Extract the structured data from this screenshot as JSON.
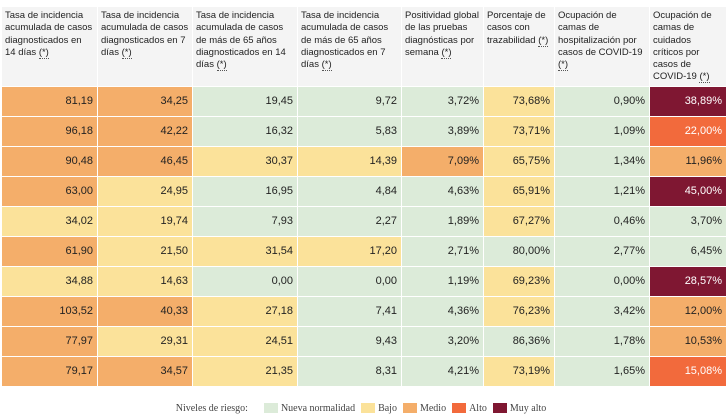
{
  "colors": {
    "normal": "#dcebd9",
    "bajo": "#fbe29a",
    "medio": "#f4ae6a",
    "alto": "#f26a3c",
    "muy_alto": "#7f1732"
  },
  "table": {
    "headers": [
      {
        "text": "Tasa de incidencia acumulada de casos diagnosticados en 14 días",
        "note": "(*)"
      },
      {
        "text": "Tasa de incidencia acumulada de casos diagnosticados en 7 días",
        "note": "(*)"
      },
      {
        "text": "Tasa de incidencia acumulada de casos de más de 65 años diagnosticados en 14 días",
        "note": "(*)"
      },
      {
        "text": "Tasa de incidencia acumulada de casos de más de 65 años diagnosticados en 7 días",
        "note": "(*)"
      },
      {
        "text": "Positividad global de las pruebas diagnósticas por semana",
        "note": "(*)"
      },
      {
        "text": "Porcentaje de casos con trazabilidad",
        "note": "(*)"
      },
      {
        "text": "Ocupación de camas de hospitalización por casos de COVID-19",
        "note": "(*)"
      },
      {
        "text": "Ocupación de camas de cuidados críticos por casos de COVID-19",
        "note": "(*)"
      }
    ],
    "rows": [
      [
        {
          "v": "81,19",
          "l": "medio"
        },
        {
          "v": "34,25",
          "l": "medio"
        },
        {
          "v": "19,45",
          "l": "normal"
        },
        {
          "v": "9,72",
          "l": "normal"
        },
        {
          "v": "3,72%",
          "l": "normal"
        },
        {
          "v": "73,68%",
          "l": "bajo"
        },
        {
          "v": "0,90%",
          "l": "normal"
        },
        {
          "v": "38,89%",
          "l": "muy_alto"
        }
      ],
      [
        {
          "v": "96,18",
          "l": "medio"
        },
        {
          "v": "42,22",
          "l": "medio"
        },
        {
          "v": "16,32",
          "l": "normal"
        },
        {
          "v": "5,83",
          "l": "normal"
        },
        {
          "v": "3,89%",
          "l": "normal"
        },
        {
          "v": "73,71%",
          "l": "bajo"
        },
        {
          "v": "1,09%",
          "l": "normal"
        },
        {
          "v": "22,00%",
          "l": "alto"
        }
      ],
      [
        {
          "v": "90,48",
          "l": "medio"
        },
        {
          "v": "46,45",
          "l": "medio"
        },
        {
          "v": "30,37",
          "l": "bajo"
        },
        {
          "v": "14,39",
          "l": "bajo"
        },
        {
          "v": "7,09%",
          "l": "medio"
        },
        {
          "v": "65,75%",
          "l": "bajo"
        },
        {
          "v": "1,34%",
          "l": "normal"
        },
        {
          "v": "11,96%",
          "l": "medio"
        }
      ],
      [
        {
          "v": "63,00",
          "l": "medio"
        },
        {
          "v": "24,95",
          "l": "bajo"
        },
        {
          "v": "16,95",
          "l": "normal"
        },
        {
          "v": "4,84",
          "l": "normal"
        },
        {
          "v": "4,63%",
          "l": "normal"
        },
        {
          "v": "65,91%",
          "l": "bajo"
        },
        {
          "v": "1,21%",
          "l": "normal"
        },
        {
          "v": "45,00%",
          "l": "muy_alto"
        }
      ],
      [
        {
          "v": "34,02",
          "l": "bajo"
        },
        {
          "v": "19,74",
          "l": "bajo"
        },
        {
          "v": "7,93",
          "l": "normal"
        },
        {
          "v": "2,27",
          "l": "normal"
        },
        {
          "v": "1,89%",
          "l": "normal"
        },
        {
          "v": "67,27%",
          "l": "bajo"
        },
        {
          "v": "0,46%",
          "l": "normal"
        },
        {
          "v": "3,70%",
          "l": "normal"
        }
      ],
      [
        {
          "v": "61,90",
          "l": "medio"
        },
        {
          "v": "21,50",
          "l": "bajo"
        },
        {
          "v": "31,54",
          "l": "bajo"
        },
        {
          "v": "17,20",
          "l": "bajo"
        },
        {
          "v": "2,71%",
          "l": "normal"
        },
        {
          "v": "80,00%",
          "l": "normal"
        },
        {
          "v": "2,77%",
          "l": "normal"
        },
        {
          "v": "6,45%",
          "l": "normal"
        }
      ],
      [
        {
          "v": "34,88",
          "l": "bajo"
        },
        {
          "v": "14,63",
          "l": "bajo"
        },
        {
          "v": "0,00",
          "l": "normal"
        },
        {
          "v": "0,00",
          "l": "normal"
        },
        {
          "v": "1,19%",
          "l": "normal"
        },
        {
          "v": "69,23%",
          "l": "bajo"
        },
        {
          "v": "0,00%",
          "l": "normal"
        },
        {
          "v": "28,57%",
          "l": "muy_alto"
        }
      ],
      [
        {
          "v": "103,52",
          "l": "medio"
        },
        {
          "v": "40,33",
          "l": "medio"
        },
        {
          "v": "27,18",
          "l": "bajo"
        },
        {
          "v": "7,41",
          "l": "normal"
        },
        {
          "v": "4,36%",
          "l": "normal"
        },
        {
          "v": "76,23%",
          "l": "bajo"
        },
        {
          "v": "3,42%",
          "l": "normal"
        },
        {
          "v": "12,00%",
          "l": "medio"
        }
      ],
      [
        {
          "v": "77,97",
          "l": "medio"
        },
        {
          "v": "29,31",
          "l": "bajo"
        },
        {
          "v": "24,51",
          "l": "bajo"
        },
        {
          "v": "9,43",
          "l": "normal"
        },
        {
          "v": "3,20%",
          "l": "normal"
        },
        {
          "v": "86,36%",
          "l": "normal"
        },
        {
          "v": "1,78%",
          "l": "normal"
        },
        {
          "v": "10,53%",
          "l": "medio"
        }
      ],
      [
        {
          "v": "79,17",
          "l": "medio"
        },
        {
          "v": "34,57",
          "l": "medio"
        },
        {
          "v": "21,35",
          "l": "bajo"
        },
        {
          "v": "8,31",
          "l": "normal"
        },
        {
          "v": "4,21%",
          "l": "normal"
        },
        {
          "v": "73,19%",
          "l": "bajo"
        },
        {
          "v": "1,65%",
          "l": "normal"
        },
        {
          "v": "15,08%",
          "l": "alto"
        }
      ]
    ]
  },
  "legend": {
    "title": "Niveles de riesgo:",
    "items": [
      {
        "label": "Nueva normalidad",
        "level": "normal"
      },
      {
        "label": "Bajo",
        "level": "bajo"
      },
      {
        "label": "Medio",
        "level": "medio"
      },
      {
        "label": "Alto",
        "level": "alto"
      },
      {
        "label": "Muy alto",
        "level": "muy_alto"
      }
    ]
  }
}
